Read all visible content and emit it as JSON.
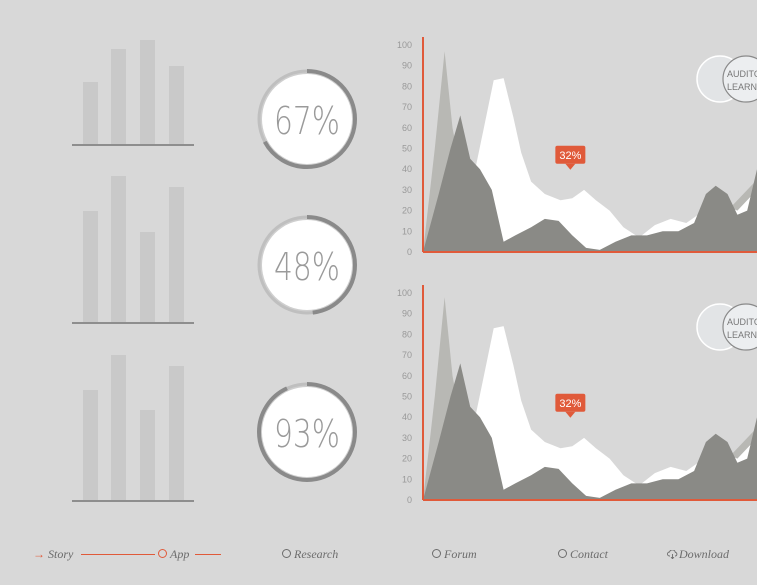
{
  "bar_charts": [
    {
      "values": [
        62,
        95,
        104,
        78
      ]
    },
    {
      "values": [
        111,
        146,
        90,
        135
      ]
    },
    {
      "values": [
        110,
        145,
        90,
        134
      ]
    }
  ],
  "gauges": [
    {
      "label": "67%",
      "value": 67
    },
    {
      "label": "48%",
      "value": 48
    },
    {
      "label": "93%",
      "value": 93
    }
  ],
  "chart_data": [
    {
      "type": "area",
      "y_ticks": [
        "100",
        "90",
        "80",
        "70",
        "60",
        "50",
        "40",
        "30",
        "20",
        "10",
        "0"
      ],
      "ylim": [
        0,
        100
      ],
      "callout": "32%",
      "legend": {
        "line1": "AUDITORY",
        "line2": "LEARNING"
      },
      "series": [
        {
          "name": "light-gray",
          "color": "#b8b8b4",
          "points": [
            [
              0,
              0
            ],
            [
              12,
              50
            ],
            [
              22,
              97
            ],
            [
              30,
              60
            ],
            [
              40,
              35
            ],
            [
              52,
              10
            ],
            [
              64,
              18
            ],
            [
              74,
              10
            ],
            [
              84,
              3
            ],
            [
              96,
              7
            ],
            [
              110,
              5
            ],
            [
              130,
              6
            ],
            [
              150,
              4
            ],
            [
              170,
              12
            ],
            [
              182,
              22
            ],
            [
              200,
              12
            ],
            [
              220,
              6
            ],
            [
              240,
              5
            ],
            [
              260,
              5
            ],
            [
              280,
              8
            ],
            [
              300,
              15
            ],
            [
              320,
              25
            ],
            [
              340,
              35
            ]
          ]
        },
        {
          "name": "white",
          "color": "#ffffff",
          "points": [
            [
              0,
              0
            ],
            [
              40,
              10
            ],
            [
              62,
              60
            ],
            [
              72,
              83
            ],
            [
              82,
              84
            ],
            [
              92,
              65
            ],
            [
              100,
              48
            ],
            [
              110,
              34
            ],
            [
              124,
              28
            ],
            [
              140,
              25
            ],
            [
              152,
              26
            ],
            [
              164,
              30
            ],
            [
              176,
              25
            ],
            [
              190,
              20
            ],
            [
              204,
              12
            ],
            [
              220,
              7
            ],
            [
              236,
              13
            ],
            [
              252,
              16
            ],
            [
              268,
              14
            ],
            [
              280,
              18
            ],
            [
              290,
              25
            ],
            [
              300,
              30
            ],
            [
              310,
              22
            ],
            [
              320,
              20
            ],
            [
              330,
              25
            ],
            [
              340,
              30
            ]
          ]
        },
        {
          "name": "dark-gray",
          "color": "#8a8a86",
          "points": [
            [
              0,
              0
            ],
            [
              16,
              28
            ],
            [
              28,
              50
            ],
            [
              38,
              66
            ],
            [
              48,
              45
            ],
            [
              58,
              40
            ],
            [
              70,
              30
            ],
            [
              82,
              5
            ],
            [
              94,
              8
            ],
            [
              110,
              12
            ],
            [
              124,
              16
            ],
            [
              138,
              15
            ],
            [
              152,
              8
            ],
            [
              166,
              2
            ],
            [
              180,
              1
            ],
            [
              196,
              5
            ],
            [
              212,
              8
            ],
            [
              228,
              8
            ],
            [
              244,
              10
            ],
            [
              260,
              10
            ],
            [
              276,
              14
            ],
            [
              288,
              28
            ],
            [
              298,
              32
            ],
            [
              310,
              28
            ],
            [
              320,
              18
            ],
            [
              330,
              20
            ],
            [
              340,
              40
            ]
          ]
        }
      ]
    },
    {
      "type": "area",
      "y_ticks": [
        "100",
        "90",
        "80",
        "70",
        "60",
        "50",
        "40",
        "30",
        "20",
        "10",
        "0"
      ],
      "ylim": [
        0,
        100
      ],
      "callout": "32%",
      "legend": {
        "line1": "AUDITORY",
        "line2": "LEARNING"
      },
      "series": [
        {
          "name": "light-gray",
          "color": "#b8b8b4",
          "points": [
            [
              0,
              0
            ],
            [
              12,
              50
            ],
            [
              22,
              98
            ],
            [
              30,
              60
            ],
            [
              40,
              35
            ],
            [
              52,
              10
            ],
            [
              64,
              18
            ],
            [
              74,
              10
            ],
            [
              84,
              3
            ],
            [
              96,
              7
            ],
            [
              110,
              5
            ],
            [
              130,
              6
            ],
            [
              150,
              4
            ],
            [
              170,
              12
            ],
            [
              182,
              22
            ],
            [
              200,
              12
            ],
            [
              220,
              6
            ],
            [
              240,
              5
            ],
            [
              260,
              5
            ],
            [
              280,
              8
            ],
            [
              300,
              15
            ],
            [
              320,
              25
            ],
            [
              340,
              35
            ]
          ]
        },
        {
          "name": "white",
          "color": "#ffffff",
          "points": [
            [
              0,
              0
            ],
            [
              40,
              10
            ],
            [
              62,
              60
            ],
            [
              72,
              83
            ],
            [
              82,
              84
            ],
            [
              92,
              65
            ],
            [
              100,
              48
            ],
            [
              110,
              34
            ],
            [
              124,
              28
            ],
            [
              140,
              25
            ],
            [
              152,
              26
            ],
            [
              164,
              30
            ],
            [
              176,
              25
            ],
            [
              190,
              20
            ],
            [
              204,
              12
            ],
            [
              220,
              7
            ],
            [
              236,
              13
            ],
            [
              252,
              16
            ],
            [
              268,
              14
            ],
            [
              280,
              18
            ],
            [
              290,
              25
            ],
            [
              300,
              30
            ],
            [
              310,
              22
            ],
            [
              320,
              20
            ],
            [
              330,
              25
            ],
            [
              340,
              30
            ]
          ]
        },
        {
          "name": "dark-gray",
          "color": "#8a8a86",
          "points": [
            [
              0,
              0
            ],
            [
              16,
              28
            ],
            [
              28,
              50
            ],
            [
              38,
              66
            ],
            [
              48,
              45
            ],
            [
              58,
              40
            ],
            [
              70,
              30
            ],
            [
              82,
              5
            ],
            [
              94,
              8
            ],
            [
              110,
              12
            ],
            [
              124,
              16
            ],
            [
              138,
              15
            ],
            [
              152,
              8
            ],
            [
              166,
              2
            ],
            [
              180,
              1
            ],
            [
              196,
              5
            ],
            [
              212,
              8
            ],
            [
              228,
              8
            ],
            [
              244,
              10
            ],
            [
              260,
              10
            ],
            [
              276,
              14
            ],
            [
              288,
              28
            ],
            [
              298,
              32
            ],
            [
              310,
              28
            ],
            [
              320,
              18
            ],
            [
              330,
              20
            ],
            [
              340,
              40
            ]
          ]
        }
      ]
    }
  ],
  "nav": {
    "items": [
      {
        "label": "Story"
      },
      {
        "label": "App"
      },
      {
        "label": "Research"
      },
      {
        "label": "Forum"
      },
      {
        "label": "Contact"
      },
      {
        "label": "Download"
      }
    ],
    "accent": "#e05a3a"
  }
}
